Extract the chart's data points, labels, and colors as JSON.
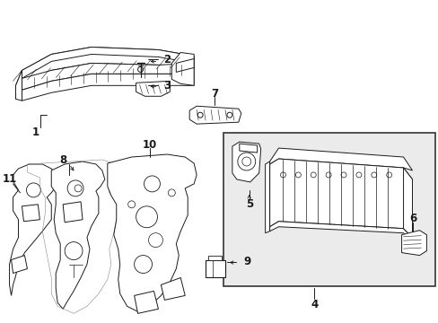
{
  "bg_color": "#ffffff",
  "line_color": "#1a1a1a",
  "box_bg_color": "#e8e8e8",
  "box_edge_color": "#444444",
  "fig_width": 4.89,
  "fig_height": 3.6,
  "dpi": 100,
  "arrow_color": "#1a1a1a",
  "label_fontsize": 8.5,
  "label_fontweight": "bold"
}
